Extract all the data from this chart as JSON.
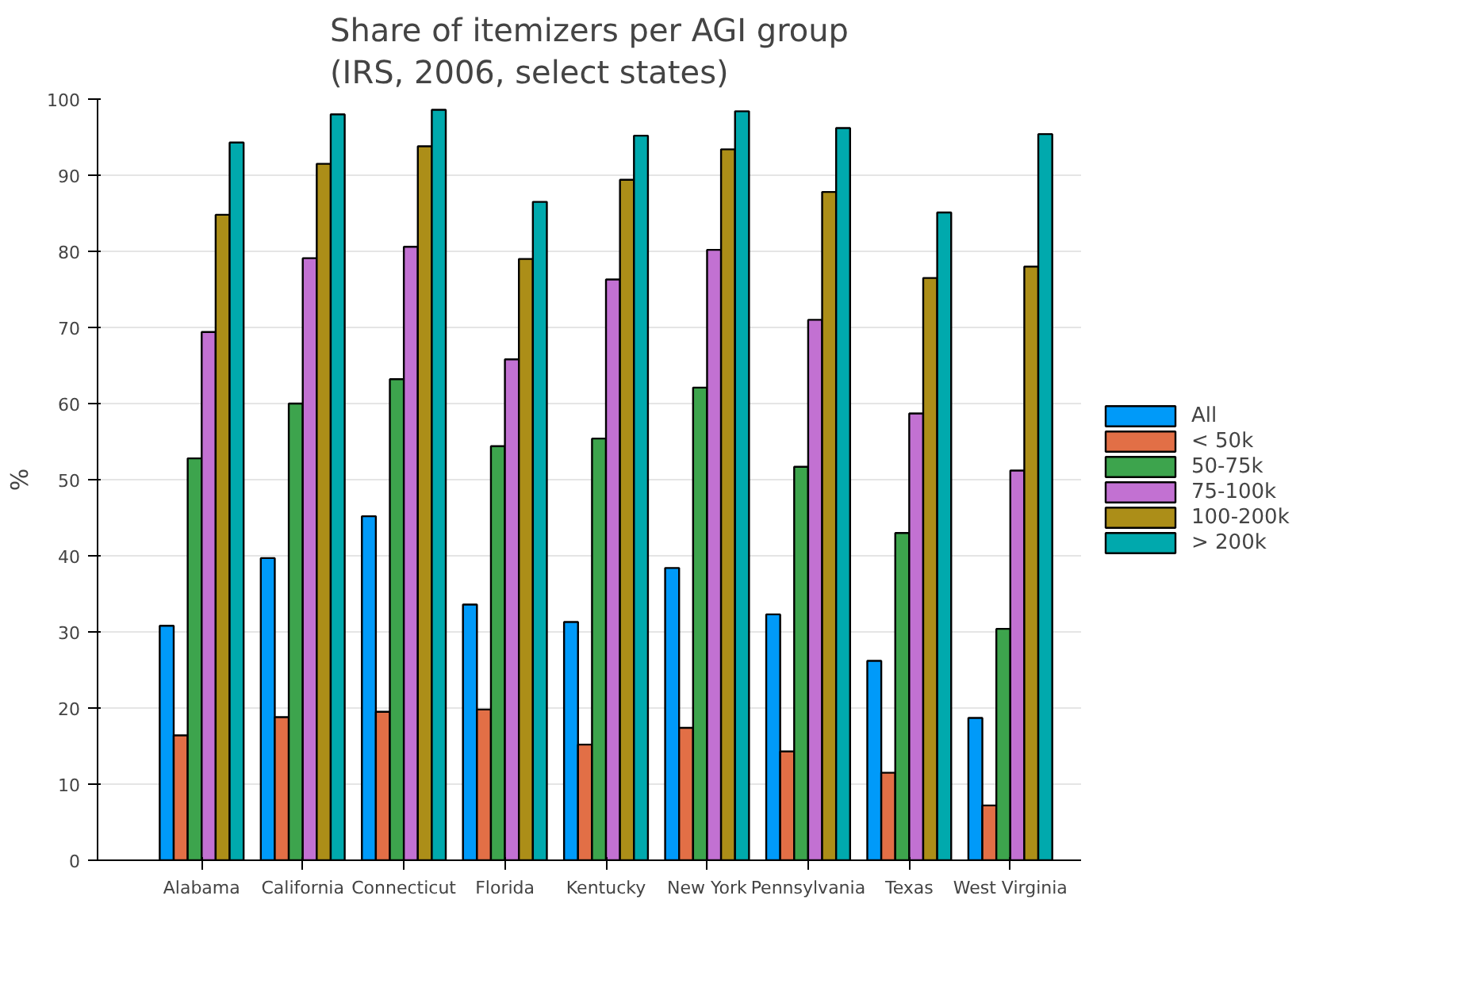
{
  "chart_data": {
    "type": "bar",
    "title": "Share of itemizers per AGI group\n(IRS, 2006, select states)",
    "ylabel": "%",
    "categories": [
      "Alabama",
      "California",
      "Connecticut",
      "Florida",
      "Kentucky",
      "New York",
      "Pennsylvania",
      "Texas",
      "West Virginia"
    ],
    "series": [
      {
        "name": "All",
        "color": "#009af9",
        "values": [
          30.8,
          39.7,
          45.2,
          33.6,
          31.3,
          38.4,
          32.3,
          26.2,
          18.7
        ]
      },
      {
        "name": "< 50k",
        "color": "#e26f46",
        "values": [
          16.4,
          18.8,
          19.5,
          19.8,
          15.2,
          17.4,
          14.3,
          11.5,
          7.2
        ]
      },
      {
        "name": "50-75k",
        "color": "#3da44d",
        "values": [
          52.8,
          60.0,
          63.2,
          54.4,
          55.4,
          62.1,
          51.7,
          43.0,
          30.4
        ]
      },
      {
        "name": "75-100k",
        "color": "#c271d2",
        "values": [
          69.4,
          79.1,
          80.6,
          65.8,
          76.3,
          80.2,
          71.0,
          58.7,
          51.2
        ]
      },
      {
        "name": "100-200k",
        "color": "#ac8e18",
        "values": [
          84.8,
          91.5,
          93.8,
          79.0,
          89.4,
          93.4,
          87.8,
          76.5,
          78.0
        ]
      },
      {
        "name": "> 200k",
        "color": "#00a9ad",
        "values": [
          94.3,
          98.0,
          98.6,
          86.5,
          95.2,
          98.4,
          96.2,
          85.1,
          95.4
        ]
      }
    ],
    "ylim": [
      0,
      100
    ],
    "yticks": [
      0,
      10,
      20,
      30,
      40,
      50,
      60,
      70,
      80,
      90,
      100
    ],
    "grid": "y",
    "legend": "right"
  }
}
